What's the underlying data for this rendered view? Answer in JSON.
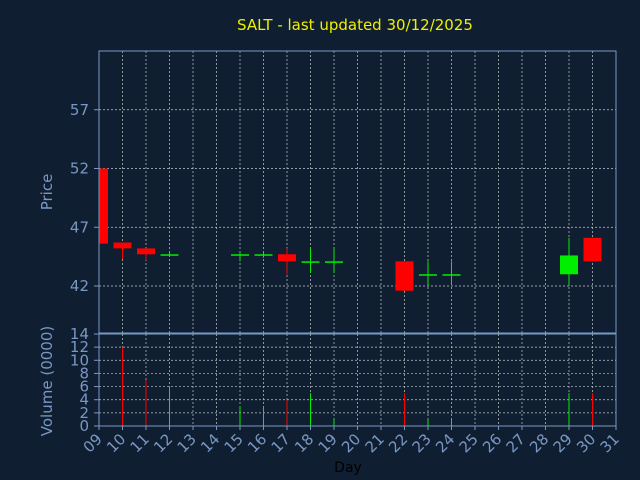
{
  "chart_data": {
    "type": "candlestick",
    "title": "SALT - last updated 30/12/2025",
    "xlabel": "Day",
    "colors": {
      "up": "#00ee00",
      "down": "#ff0000",
      "background": "#0f1e30",
      "axis": "#7a98c4",
      "title": "#f0f000"
    },
    "x_ticks": [
      "09",
      "10",
      "11",
      "12",
      "13",
      "14",
      "15",
      "16",
      "17",
      "18",
      "19",
      "20",
      "21",
      "22",
      "23",
      "24",
      "25",
      "26",
      "27",
      "28",
      "29",
      "30",
      "31"
    ],
    "price_panel": {
      "ylabel": "Price",
      "ylim": [
        38,
        62
      ],
      "y_ticks": [
        42,
        47,
        52,
        57
      ],
      "candles": [
        {
          "day": 9,
          "open": 52.0,
          "high": 52.0,
          "low": 45.6,
          "close": 45.6
        },
        {
          "day": 10,
          "open": 45.7,
          "high": 45.7,
          "low": 44.3,
          "close": 45.2
        },
        {
          "day": 11,
          "open": 45.2,
          "high": 45.2,
          "low": 44.2,
          "close": 44.7
        },
        {
          "day": 12,
          "open": 44.6,
          "high": 44.9,
          "low": 44.5,
          "close": 44.7
        },
        {
          "day": 15,
          "open": 44.6,
          "high": 44.9,
          "low": 44.1,
          "close": 44.7
        },
        {
          "day": 16,
          "open": 44.6,
          "high": 44.9,
          "low": 44.4,
          "close": 44.7
        },
        {
          "day": 17,
          "open": 44.7,
          "high": 45.2,
          "low": 43.0,
          "close": 44.1
        },
        {
          "day": 18,
          "open": 44.0,
          "high": 45.2,
          "low": 43.1,
          "close": 44.1
        },
        {
          "day": 19,
          "open": 44.0,
          "high": 45.2,
          "low": 43.1,
          "close": 44.1
        },
        {
          "day": 22,
          "open": 44.1,
          "high": 44.1,
          "low": 41.6,
          "close": 41.6
        },
        {
          "day": 23,
          "open": 42.9,
          "high": 44.1,
          "low": 42.0,
          "close": 43.0
        },
        {
          "day": 24,
          "open": 42.9,
          "high": 44.1,
          "low": 42.2,
          "close": 43.0
        },
        {
          "day": 29,
          "open": 43.0,
          "high": 46.1,
          "low": 42.0,
          "close": 44.6
        },
        {
          "day": 30,
          "open": 46.1,
          "high": 46.1,
          "low": 44.1,
          "close": 44.1
        }
      ]
    },
    "volume_panel": {
      "ylabel": "Volume (0000)",
      "ylim": [
        0,
        14
      ],
      "y_ticks": [
        0,
        2,
        4,
        6,
        8,
        10,
        12,
        14
      ],
      "bars": [
        {
          "day": 10,
          "value": 12,
          "direction": "down"
        },
        {
          "day": 11,
          "value": 7,
          "direction": "down"
        },
        {
          "day": 12,
          "value": 6,
          "direction": "up"
        },
        {
          "day": 15,
          "value": 3,
          "direction": "up"
        },
        {
          "day": 16,
          "value": 3,
          "direction": "up"
        },
        {
          "day": 17,
          "value": 4,
          "direction": "down"
        },
        {
          "day": 18,
          "value": 5,
          "direction": "up"
        },
        {
          "day": 19,
          "value": 1,
          "direction": "up"
        },
        {
          "day": 22,
          "value": 5,
          "direction": "down"
        },
        {
          "day": 23,
          "value": 1,
          "direction": "up"
        },
        {
          "day": 24,
          "value": 1,
          "direction": "up"
        },
        {
          "day": 29,
          "value": 5,
          "direction": "up"
        },
        {
          "day": 30,
          "value": 5,
          "direction": "down"
        }
      ]
    },
    "grid": true
  }
}
